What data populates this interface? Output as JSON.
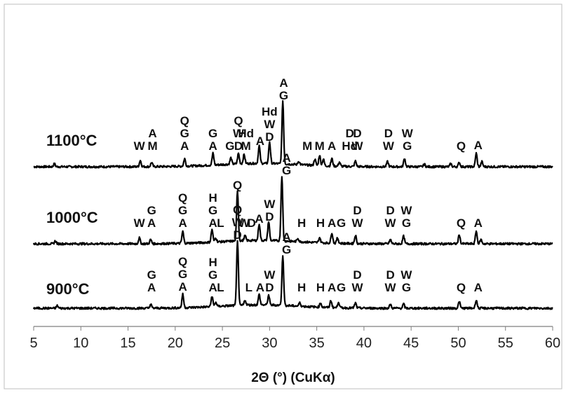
{
  "chart_data": {
    "type": "line",
    "xlabel": "2Θ (°)  (CuKα)",
    "ylabel": "",
    "xlim": [
      5,
      60
    ],
    "x_ticks": [
      5,
      10,
      15,
      20,
      25,
      30,
      35,
      40,
      45,
      50,
      55,
      60
    ],
    "grid": false,
    "legend": "none",
    "series": [
      {
        "name": "1100°C",
        "peaks": [
          [
            7.2,
            0.7
          ],
          [
            16.3,
            1.5
          ],
          [
            17.5,
            1.0
          ],
          [
            21.0,
            1.8
          ],
          [
            24.0,
            2.8
          ],
          [
            25.9,
            1.5
          ],
          [
            26.7,
            2.5
          ],
          [
            27.3,
            2.2
          ],
          [
            28.9,
            4.2
          ],
          [
            30.0,
            5.2
          ],
          [
            31.4,
            15.0
          ],
          [
            33.1,
            0.8
          ],
          [
            34.8,
            1.5
          ],
          [
            35.3,
            2.5
          ],
          [
            35.7,
            1.6
          ],
          [
            36.6,
            1.8
          ],
          [
            37.4,
            1.0
          ],
          [
            39.1,
            1.3
          ],
          [
            42.5,
            1.2
          ],
          [
            44.3,
            2.0
          ],
          [
            46.4,
            0.6
          ],
          [
            49.2,
            0.7
          ],
          [
            50.1,
            1.0
          ],
          [
            51.9,
            3.2
          ],
          [
            52.5,
            1.2
          ]
        ],
        "peak_labels": [
          {
            "x": 16.2,
            "text": "W"
          },
          {
            "x": 17.6,
            "text": "A"
          },
          {
            "x": 17.6,
            "text": "M"
          },
          {
            "x": 21.0,
            "text": "Q"
          },
          {
            "x": 21.0,
            "text": "G"
          },
          {
            "x": 21.0,
            "text": "A"
          },
          {
            "x": 24.0,
            "text": "G"
          },
          {
            "x": 24.0,
            "text": "A"
          },
          {
            "x": 25.8,
            "text": "G"
          },
          {
            "x": 26.7,
            "text": "Q"
          },
          {
            "x": 26.7,
            "text": "W"
          },
          {
            "x": 26.7,
            "text": "D"
          },
          {
            "x": 27.5,
            "text": "Hd"
          },
          {
            "x": 27.5,
            "text": "M"
          },
          {
            "x": 29.0,
            "text": "A"
          },
          {
            "x": 30.0,
            "text": "Hd"
          },
          {
            "x": 30.0,
            "text": "W"
          },
          {
            "x": 30.0,
            "text": "D"
          },
          {
            "x": 31.5,
            "text": "A"
          },
          {
            "x": 31.5,
            "text": "G"
          },
          {
            "x": 34.0,
            "text": "M"
          },
          {
            "x": 35.3,
            "text": "M"
          },
          {
            "x": 36.6,
            "text": "A"
          },
          {
            "x": 38.5,
            "text": "D"
          },
          {
            "x": 38.5,
            "text": "Hd"
          },
          {
            "x": 39.3,
            "text": "D"
          },
          {
            "x": 39.3,
            "text": "W"
          },
          {
            "x": 42.6,
            "text": "D"
          },
          {
            "x": 42.6,
            "text": "W"
          },
          {
            "x": 44.6,
            "text": "W"
          },
          {
            "x": 44.6,
            "text": "G"
          },
          {
            "x": 50.3,
            "text": "Q"
          },
          {
            "x": 52.1,
            "text": "A"
          }
        ]
      },
      {
        "name": "1000°C",
        "peaks": [
          [
            7.3,
            0.7
          ],
          [
            16.2,
            1.4
          ],
          [
            17.4,
            1.0
          ],
          [
            20.8,
            2.8
          ],
          [
            23.9,
            3.0
          ],
          [
            24.3,
            1.0
          ],
          [
            26.6,
            12.0
          ],
          [
            27.4,
            1.2
          ],
          [
            28.9,
            4.0
          ],
          [
            29.9,
            4.5
          ],
          [
            31.3,
            15.5
          ],
          [
            33.0,
            0.8
          ],
          [
            35.3,
            1.2
          ],
          [
            36.6,
            2.5
          ],
          [
            37.2,
            1.3
          ],
          [
            39.1,
            2.0
          ],
          [
            42.8,
            1.0
          ],
          [
            44.2,
            1.8
          ],
          [
            50.1,
            2.2
          ],
          [
            51.9,
            3.0
          ],
          [
            52.4,
            1.0
          ]
        ],
        "peak_labels": [
          {
            "x": 16.2,
            "text": "W"
          },
          {
            "x": 17.5,
            "text": "G"
          },
          {
            "x": 17.5,
            "text": "A"
          },
          {
            "x": 20.8,
            "text": "Q"
          },
          {
            "x": 20.8,
            "text": "G"
          },
          {
            "x": 20.8,
            "text": "A"
          },
          {
            "x": 24.0,
            "text": "H"
          },
          {
            "x": 24.0,
            "text": "G"
          },
          {
            "x": 24.0,
            "text": "A"
          },
          {
            "x": 24.8,
            "text": "L"
          },
          {
            "x": 26.6,
            "text": "Q"
          },
          {
            "x": 27.3,
            "text": "W"
          },
          {
            "x": 28.1,
            "text": "D"
          },
          {
            "x": 28.9,
            "text": "A"
          },
          {
            "x": 30.0,
            "text": "W"
          },
          {
            "x": 30.0,
            "text": "D"
          },
          {
            "x": 31.8,
            "text": "A"
          },
          {
            "x": 31.8,
            "text": "G"
          },
          {
            "x": 33.4,
            "text": "H"
          },
          {
            "x": 35.4,
            "text": "H"
          },
          {
            "x": 36.6,
            "text": "A"
          },
          {
            "x": 37.6,
            "text": "G"
          },
          {
            "x": 39.3,
            "text": "D"
          },
          {
            "x": 39.3,
            "text": "W"
          },
          {
            "x": 42.8,
            "text": "D"
          },
          {
            "x": 42.8,
            "text": "W"
          },
          {
            "x": 44.5,
            "text": "W"
          },
          {
            "x": 44.5,
            "text": "G"
          },
          {
            "x": 50.3,
            "text": "Q"
          },
          {
            "x": 52.1,
            "text": "A"
          }
        ]
      },
      {
        "name": "900°C",
        "peaks": [
          [
            7.5,
            0.6
          ],
          [
            17.4,
            0.9
          ],
          [
            20.8,
            3.2
          ],
          [
            23.9,
            2.5
          ],
          [
            24.3,
            1.0
          ],
          [
            26.6,
            15.5
          ],
          [
            27.4,
            1.2
          ],
          [
            28.9,
            2.5
          ],
          [
            29.9,
            2.3
          ],
          [
            31.4,
            12.0
          ],
          [
            33.2,
            0.8
          ],
          [
            35.4,
            1.0
          ],
          [
            36.5,
            1.7
          ],
          [
            37.3,
            1.4
          ],
          [
            39.1,
            1.2
          ],
          [
            42.8,
            0.9
          ],
          [
            44.2,
            1.0
          ],
          [
            50.1,
            1.6
          ],
          [
            51.9,
            2.0
          ]
        ],
        "peak_labels": [
          {
            "x": 17.5,
            "text": "G"
          },
          {
            "x": 17.5,
            "text": "A"
          },
          {
            "x": 20.8,
            "text": "Q"
          },
          {
            "x": 20.8,
            "text": "G"
          },
          {
            "x": 20.8,
            "text": "A"
          },
          {
            "x": 24.0,
            "text": "H"
          },
          {
            "x": 24.0,
            "text": "G"
          },
          {
            "x": 24.0,
            "text": "A"
          },
          {
            "x": 24.8,
            "text": "L"
          },
          {
            "x": 26.6,
            "text": "Q"
          },
          {
            "x": 26.6,
            "text": "W"
          },
          {
            "x": 26.6,
            "text": "D"
          },
          {
            "x": 27.8,
            "text": "L"
          },
          {
            "x": 29.0,
            "text": "A"
          },
          {
            "x": 30.0,
            "text": "W"
          },
          {
            "x": 30.0,
            "text": "D"
          },
          {
            "x": 31.8,
            "text": "A"
          },
          {
            "x": 31.8,
            "text": "G"
          },
          {
            "x": 33.4,
            "text": "H"
          },
          {
            "x": 35.4,
            "text": "H"
          },
          {
            "x": 36.6,
            "text": "A"
          },
          {
            "x": 37.6,
            "text": "G"
          },
          {
            "x": 39.3,
            "text": "D"
          },
          {
            "x": 39.3,
            "text": "W"
          },
          {
            "x": 42.8,
            "text": "D"
          },
          {
            "x": 42.8,
            "text": "W"
          },
          {
            "x": 44.5,
            "text": "W"
          },
          {
            "x": 44.5,
            "text": "G"
          },
          {
            "x": 50.3,
            "text": "Q"
          },
          {
            "x": 52.1,
            "text": "A"
          }
        ]
      }
    ]
  }
}
